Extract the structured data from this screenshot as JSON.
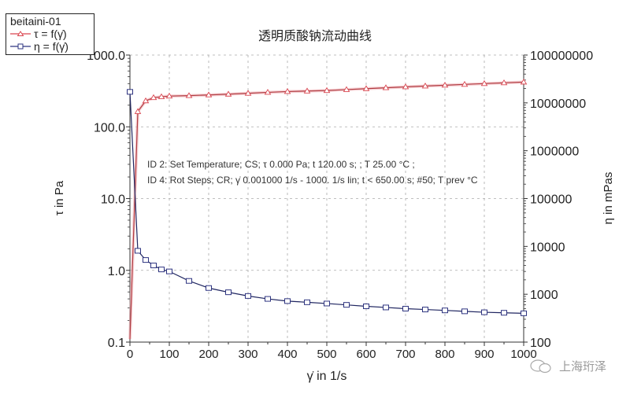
{
  "chart_data": {
    "type": "line",
    "title": "透明质酸钠流动曲线",
    "xlabel": "γ̇ in 1/s",
    "ylabel_left": "τ in Pa",
    "ylabel_right": "η in mPas",
    "xlim": [
      0,
      1000
    ],
    "ylim_left": [
      0.1,
      1000
    ],
    "ylim_right": [
      100,
      100000000
    ],
    "yscale_left": "log",
    "yscale_right": "log",
    "grid": true,
    "x_ticks": [
      "0",
      "100",
      "200",
      "300",
      "400",
      "500",
      "600",
      "700",
      "800",
      "900",
      "1000"
    ],
    "y_left_ticks": [
      "0.1",
      "1.0",
      "10.0",
      "100.0",
      "1000.0"
    ],
    "y_right_ticks": [
      "100",
      "1000",
      "10000",
      "100000",
      "1000000",
      "10000000",
      "100000000"
    ],
    "legend_title": "beitaini-01",
    "legend_position": "top-left",
    "series": [
      {
        "name": "τ = f(γ̇)",
        "axis": "left",
        "color": "#d9454f",
        "marker": "triangle",
        "x": [
          0,
          20,
          40,
          60,
          80,
          100,
          150,
          200,
          250,
          300,
          350,
          400,
          450,
          500,
          550,
          600,
          650,
          700,
          750,
          800,
          850,
          900,
          950,
          1000
        ],
        "values": [
          0.11,
          163,
          230,
          255,
          262,
          268,
          272,
          278,
          285,
          293,
          302,
          310,
          315,
          320,
          330,
          340,
          350,
          360,
          370,
          380,
          390,
          400,
          410,
          420
        ]
      },
      {
        "name": "η = f(γ̇)",
        "axis": "right",
        "color": "#2e3480",
        "marker": "square",
        "x": [
          0,
          20,
          40,
          60,
          80,
          100,
          150,
          200,
          250,
          300,
          350,
          400,
          450,
          500,
          550,
          600,
          650,
          700,
          750,
          800,
          850,
          900,
          950,
          1000
        ],
        "values": [
          17000000,
          8100,
          5200,
          4000,
          3300,
          3000,
          1900,
          1350,
          1100,
          920,
          800,
          720,
          680,
          640,
          600,
          560,
          530,
          500,
          480,
          460,
          440,
          420,
          410,
          400
        ]
      }
    ],
    "annotations": [
      "ID 2: Set Temperature; CS; τ 0.000 Pa; t 120.00 s;    ; T 25.00 °C ;",
      "ID 4: Rot Steps; CR; γ̇ 0.001000 1/s - 1000. 1/s lin; t < 650.00 s; #50; T prev °C"
    ]
  },
  "watermark": {
    "text": "上海珩泽",
    "icon": "wechat-icon"
  }
}
